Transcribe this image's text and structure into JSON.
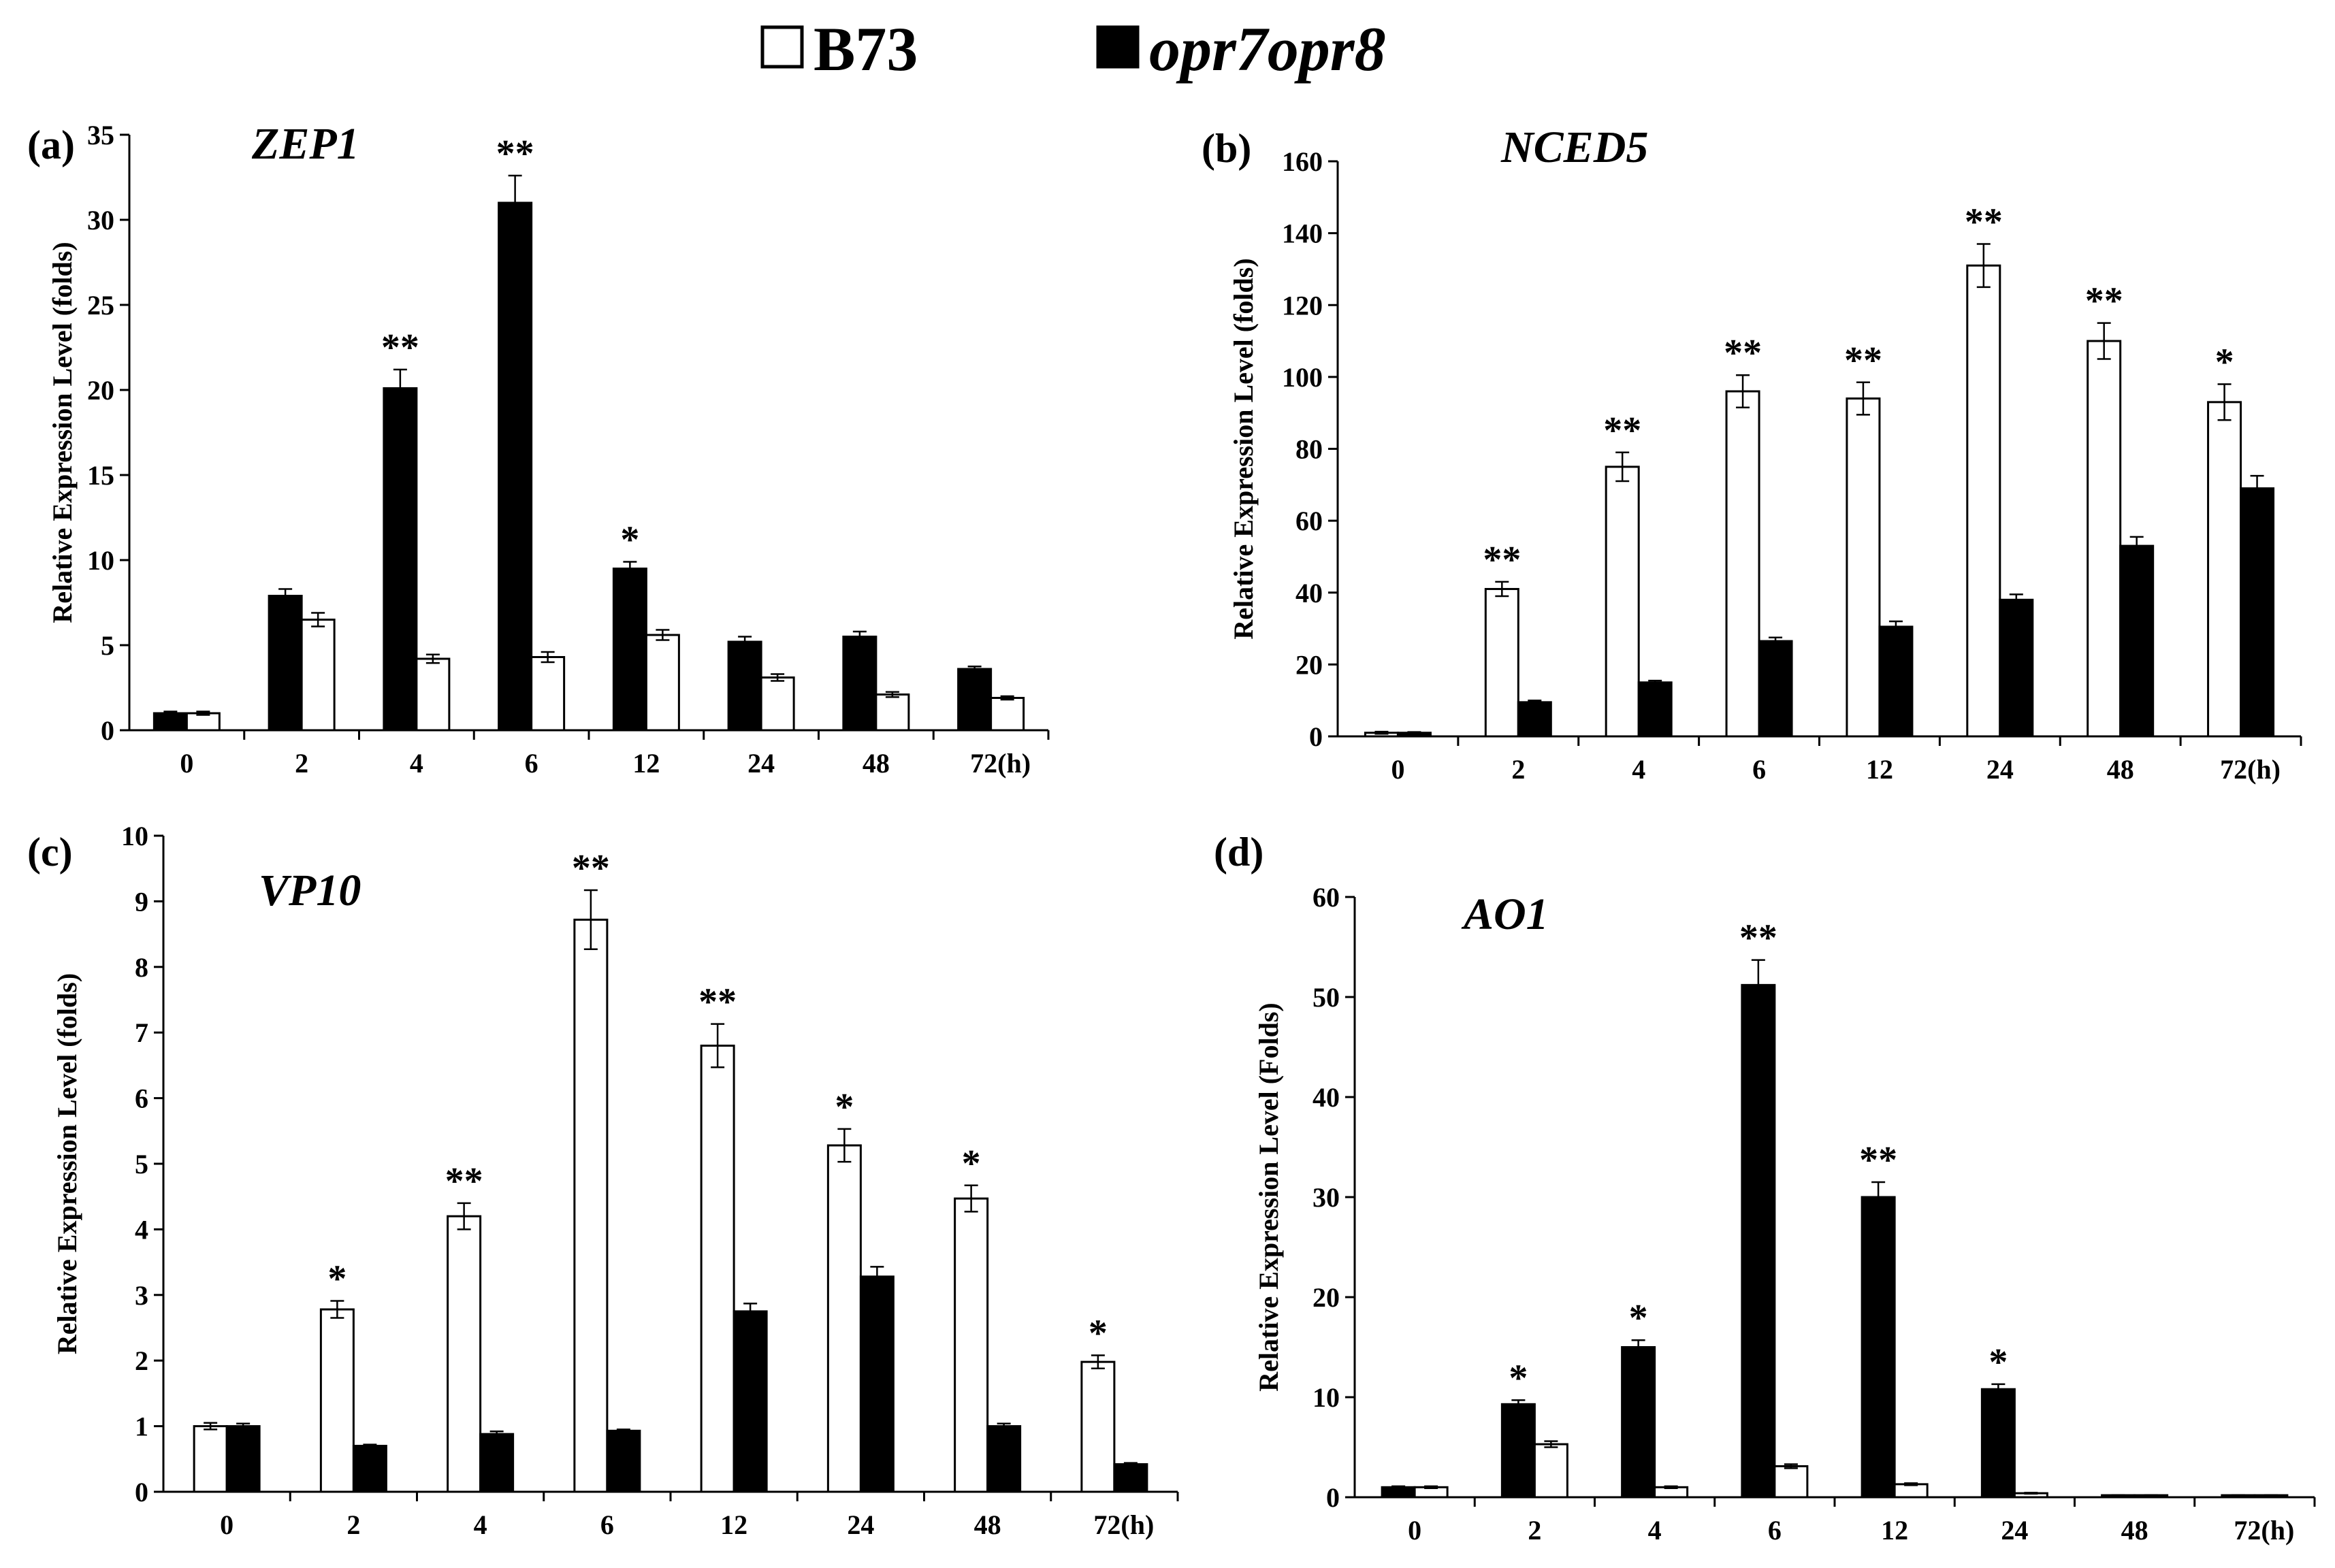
{
  "legend": [
    {
      "name": "B73",
      "fill": "#ffffff"
    },
    {
      "name": "opr7opr8",
      "fill": "#000000"
    }
  ],
  "colors": {
    "b73": "#ffffff",
    "mutant": "#000000",
    "axis": "#000000"
  },
  "chart_data": [
    {
      "type": "bar",
      "panel_label": "(a)",
      "title": "ZEP1",
      "ylabel": "Relative Expression Level (folds)",
      "xlabel": "",
      "categories": [
        "0",
        "2",
        "4",
        "6",
        "12",
        "24",
        "48",
        "72(h)"
      ],
      "ylim": [
        0,
        35
      ],
      "yticks": [
        0,
        5,
        10,
        15,
        20,
        25,
        30,
        35
      ],
      "series_order": [
        "opr7opr8",
        "B73"
      ],
      "series": [
        {
          "name": "opr7opr8",
          "values": [
            1.0,
            7.9,
            20.1,
            31.0,
            9.5,
            5.2,
            5.5,
            3.6
          ],
          "errors": [
            0.1,
            0.4,
            1.1,
            1.6,
            0.4,
            0.3,
            0.3,
            0.15
          ]
        },
        {
          "name": "B73",
          "values": [
            1.0,
            6.5,
            4.2,
            4.3,
            5.6,
            3.1,
            2.1,
            1.9
          ],
          "errors": [
            0.1,
            0.4,
            0.25,
            0.3,
            0.3,
            0.2,
            0.15,
            0.1
          ]
        }
      ],
      "significance": [
        "",
        "",
        "**",
        "**",
        "*",
        "",
        "",
        ""
      ]
    },
    {
      "type": "bar",
      "panel_label": "(b)",
      "title": "NCED5",
      "ylabel": "Relative Expression Level (folds)",
      "xlabel": "",
      "categories": [
        "0",
        "2",
        "4",
        "6",
        "12",
        "24",
        "48",
        "72(h)"
      ],
      "ylim": [
        0,
        160
      ],
      "yticks": [
        0,
        20,
        40,
        60,
        80,
        100,
        120,
        140,
        160
      ],
      "series_order": [
        "B73",
        "opr7opr8"
      ],
      "series": [
        {
          "name": "B73",
          "values": [
            1.0,
            41,
            75,
            96,
            94,
            131,
            110,
            93
          ],
          "errors": [
            0.3,
            2,
            4,
            4.5,
            4.5,
            6,
            5,
            5
          ]
        },
        {
          "name": "opr7opr8",
          "values": [
            1.0,
            9.5,
            15,
            26.5,
            30.5,
            38,
            53,
            69
          ],
          "errors": [
            0.2,
            0.5,
            0.5,
            1,
            1.5,
            1.5,
            2.5,
            3.5
          ]
        }
      ],
      "significance": [
        "",
        "**",
        "**",
        "**",
        "**",
        "**",
        "**",
        "*"
      ]
    },
    {
      "type": "bar",
      "panel_label": "(c)",
      "title": "VP10",
      "ylabel": "Relative Expression Level (folds)",
      "xlabel": "",
      "categories": [
        "0",
        "2",
        "4",
        "6",
        "12",
        "24",
        "48",
        "72(h)"
      ],
      "ylim": [
        0,
        10
      ],
      "yticks": [
        0,
        1,
        2,
        3,
        4,
        5,
        6,
        7,
        8,
        9,
        10
      ],
      "series_order": [
        "B73",
        "opr7opr8"
      ],
      "series": [
        {
          "name": "B73",
          "values": [
            1.0,
            2.78,
            4.2,
            8.72,
            6.8,
            5.28,
            4.47,
            1.98
          ],
          "errors": [
            0.05,
            0.13,
            0.2,
            0.45,
            0.33,
            0.25,
            0.2,
            0.1
          ]
        },
        {
          "name": "opr7opr8",
          "values": [
            1.0,
            0.7,
            0.88,
            0.93,
            2.75,
            3.28,
            1.0,
            0.42
          ],
          "errors": [
            0.04,
            0.02,
            0.04,
            0.02,
            0.12,
            0.15,
            0.04,
            0.02
          ]
        }
      ],
      "significance": [
        "",
        "*",
        "**",
        "**",
        "**",
        "*",
        "*",
        "*"
      ]
    },
    {
      "type": "bar",
      "panel_label": "(d)",
      "title": "AO1",
      "ylabel": "Relative Expression Level (Folds)",
      "xlabel": "",
      "categories": [
        "0",
        "2",
        "4",
        "6",
        "12",
        "24",
        "48",
        "72(h)"
      ],
      "ylim": [
        0,
        60
      ],
      "yticks": [
        0,
        10,
        20,
        30,
        40,
        50,
        60
      ],
      "series_order": [
        "opr7opr8",
        "B73"
      ],
      "series": [
        {
          "name": "opr7opr8",
          "values": [
            1.0,
            9.3,
            15.0,
            51.2,
            30.0,
            10.8,
            0.2,
            0.2
          ],
          "errors": [
            0.1,
            0.4,
            0.7,
            2.5,
            1.5,
            0.5,
            0.02,
            0.02
          ]
        },
        {
          "name": "B73",
          "values": [
            1.0,
            5.3,
            1.0,
            3.1,
            1.3,
            0.4,
            0.2,
            0.2
          ],
          "errors": [
            0.1,
            0.3,
            0.1,
            0.2,
            0.1,
            0.05,
            0.02,
            0.02
          ]
        }
      ],
      "significance": [
        "",
        "*",
        "*",
        "**",
        "**",
        "*",
        "",
        ""
      ]
    }
  ]
}
